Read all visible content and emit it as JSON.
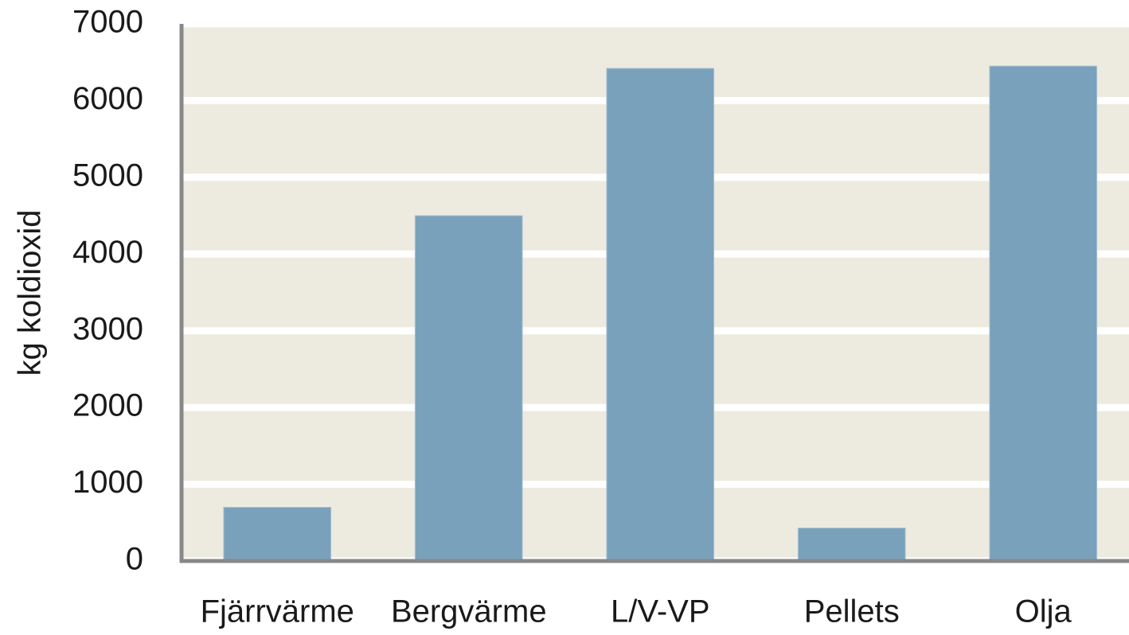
{
  "chart_data": {
    "type": "bar",
    "y_label": "kg koldioxid",
    "categories": [
      "Fjärrvärme",
      "Bergvärme",
      "L/V-VP",
      "Pellets",
      "Olja"
    ],
    "values": [
      700,
      4500,
      6420,
      430,
      6450
    ],
    "color": "#7aa1bb",
    "ylim": [
      0,
      7000
    ],
    "yticks": [
      0,
      1000,
      2000,
      3000,
      4000,
      5000,
      6000,
      7000
    ],
    "grid": true
  }
}
